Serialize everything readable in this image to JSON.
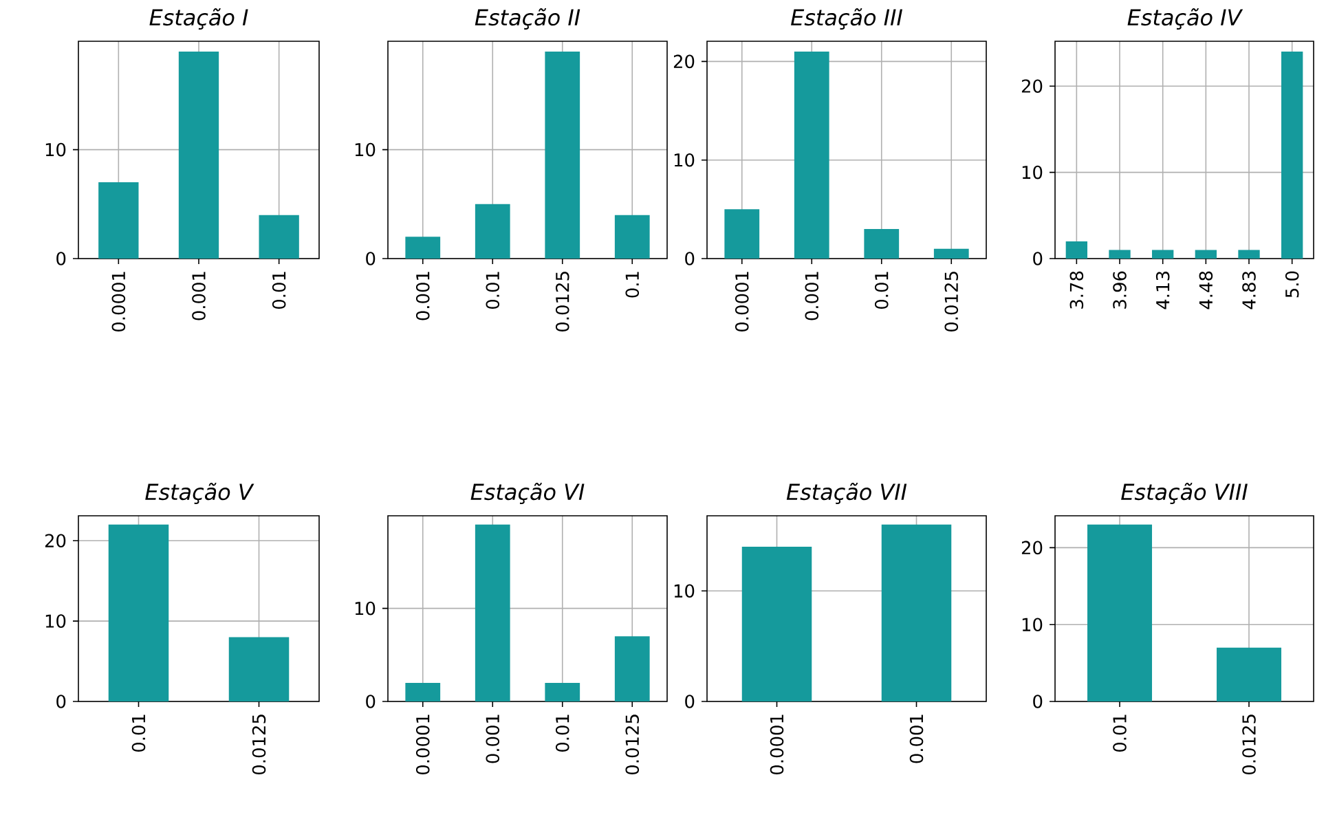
{
  "chart_data": [
    {
      "type": "bar",
      "title": "Estação  I",
      "categories": [
        "0.0001",
        "0.001",
        "0.01"
      ],
      "values": [
        7,
        19,
        4
      ],
      "color": "#159a9c",
      "ylim": [
        0,
        19.95
      ],
      "yticks": [
        0,
        10
      ],
      "grid": true
    },
    {
      "type": "bar",
      "title": "Estação  II",
      "categories": [
        "0.001",
        "0.01",
        "0.0125",
        "0.1"
      ],
      "values": [
        2,
        5,
        19,
        4
      ],
      "color": "#159a9c",
      "ylim": [
        0,
        19.95
      ],
      "yticks": [
        0,
        10
      ],
      "grid": true
    },
    {
      "type": "bar",
      "title": "Estação  III",
      "categories": [
        "0.0001",
        "0.001",
        "0.01",
        "0.0125"
      ],
      "values": [
        5,
        21,
        3,
        1
      ],
      "color": "#159a9c",
      "ylim": [
        0,
        22.05
      ],
      "yticks": [
        0,
        10,
        20
      ],
      "grid": true
    },
    {
      "type": "bar",
      "title": "Estação  IV",
      "categories": [
        "3.78",
        "3.96",
        "4.13",
        "4.48",
        "4.83",
        "5.0"
      ],
      "values": [
        2,
        1,
        1,
        1,
        1,
        24
      ],
      "color": "#159a9c",
      "ylim": [
        0,
        25.2
      ],
      "yticks": [
        0,
        10,
        20
      ],
      "grid": true
    },
    {
      "type": "bar",
      "title": "Estação  V",
      "categories": [
        "0.01",
        "0.0125"
      ],
      "values": [
        22,
        8
      ],
      "color": "#159a9c",
      "ylim": [
        0,
        23.1
      ],
      "yticks": [
        0,
        10,
        20
      ],
      "grid": true
    },
    {
      "type": "bar",
      "title": "Estação  VI",
      "categories": [
        "0.0001",
        "0.001",
        "0.01",
        "0.0125"
      ],
      "values": [
        2,
        19,
        2,
        7
      ],
      "color": "#159a9c",
      "ylim": [
        0,
        19.95
      ],
      "yticks": [
        0,
        10
      ],
      "grid": true
    },
    {
      "type": "bar",
      "title": "Estação  VII",
      "categories": [
        "0.0001",
        "0.001"
      ],
      "values": [
        14,
        16
      ],
      "color": "#159a9c",
      "ylim": [
        0,
        16.8
      ],
      "yticks": [
        0,
        10
      ],
      "grid": true
    },
    {
      "type": "bar",
      "title": "Estação  VIII",
      "categories": [
        "0.01",
        "0.0125"
      ],
      "values": [
        23,
        7
      ],
      "color": "#159a9c",
      "ylim": [
        0,
        24.15
      ],
      "yticks": [
        0,
        10,
        20
      ],
      "grid": true
    }
  ]
}
